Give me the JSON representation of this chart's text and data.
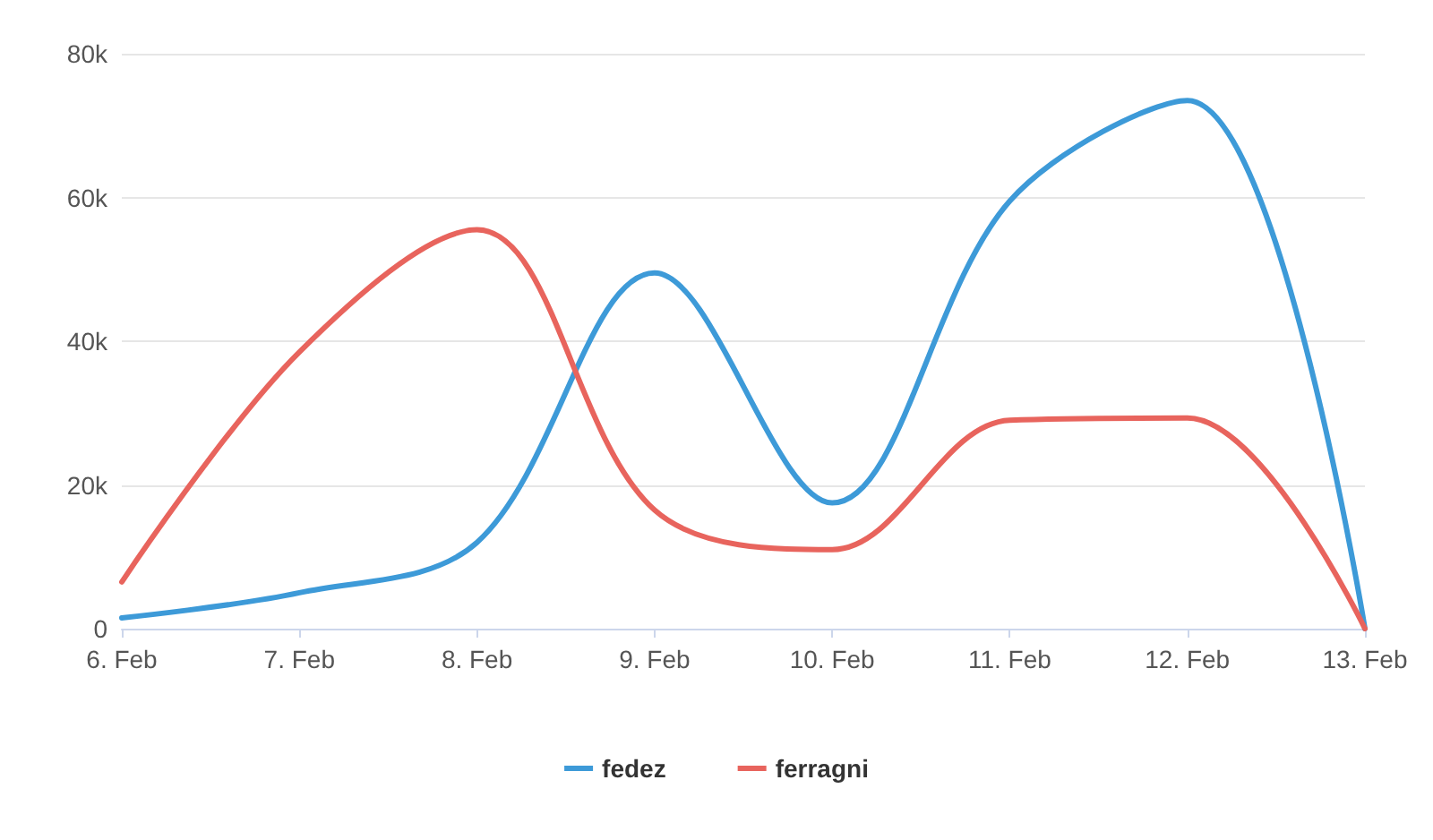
{
  "chart_data": {
    "type": "line",
    "categories": [
      "6. Feb",
      "7. Feb",
      "8. Feb",
      "9. Feb",
      "10. Feb",
      "11. Feb",
      "12. Feb",
      "13. Feb"
    ],
    "series": [
      {
        "name": "fedez",
        "color": "#3d9ad8",
        "values": [
          1500,
          5000,
          12000,
          49500,
          17500,
          59500,
          73500,
          0
        ]
      },
      {
        "name": "ferragni",
        "color": "#e8645d",
        "values": [
          6500,
          38500,
          55500,
          16500,
          11000,
          29000,
          29300,
          0
        ]
      }
    ],
    "ylim": [
      0,
      80000
    ],
    "yticks": [
      {
        "value": 0,
        "label": "0"
      },
      {
        "value": 20000,
        "label": "20k"
      },
      {
        "value": 40000,
        "label": "40k"
      },
      {
        "value": 60000,
        "label": "60k"
      },
      {
        "value": 80000,
        "label": "80k"
      }
    ],
    "grid": "y",
    "legend": "bottom",
    "marker": "none",
    "line_style": "solid"
  }
}
